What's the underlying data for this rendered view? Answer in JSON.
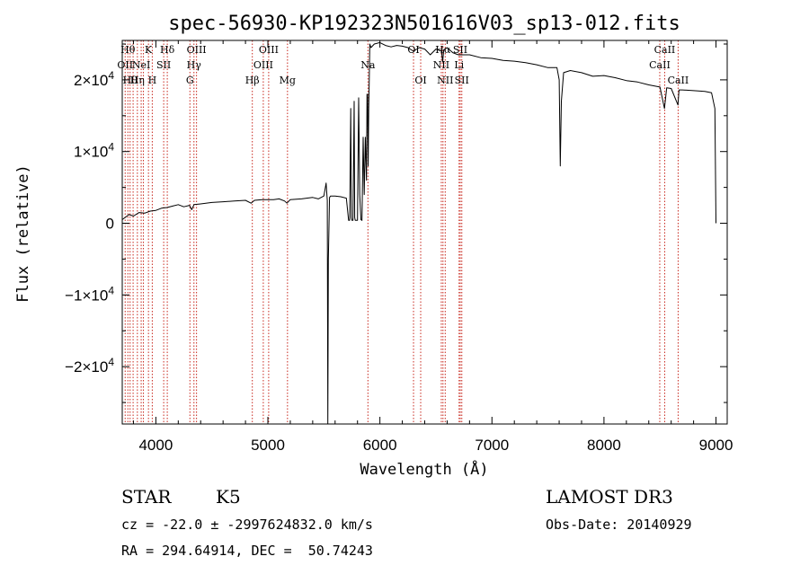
{
  "chart_data": {
    "type": "line",
    "title": "spec-56930-KP192323N501616V03_sp13-012.fits",
    "xlabel": "Wavelength (Å)",
    "ylabel": "Flux (relative)",
    "xlim": [
      3700,
      9100
    ],
    "ylim": [
      -28000,
      25500
    ],
    "x_ticks": [
      4000,
      5000,
      6000,
      7000,
      8000,
      9000
    ],
    "x_tick_labels": [
      "4000",
      "5000",
      "6000",
      "7000",
      "8000",
      "9000"
    ],
    "y_ticks": [
      -20000,
      -10000,
      0,
      10000,
      20000
    ],
    "y_tick_labels": [
      "−2×10",
      "−1×10",
      "0",
      "1×10",
      "2×10"
    ],
    "y_tick_exponent": [
      "4",
      "4",
      "",
      "4",
      "4"
    ],
    "series": [
      {
        "name": "flux",
        "x": [
          3700,
          3760,
          3800,
          3850,
          3900,
          3950,
          4000,
          4050,
          4100,
          4150,
          4200,
          4250,
          4300,
          4320,
          4340,
          4400,
          4500,
          4600,
          4700,
          4800,
          4850,
          4880,
          4950,
          5000,
          5050,
          5100,
          5150,
          5170,
          5200,
          5300,
          5400,
          5450,
          5500,
          5520,
          5530,
          5535,
          5540,
          5550,
          5560,
          5600,
          5650,
          5700,
          5720,
          5730,
          5740,
          5745,
          5750,
          5760,
          5770,
          5775,
          5780,
          5800,
          5810,
          5820,
          5830,
          5840,
          5850,
          5860,
          5870,
          5880,
          5885,
          5890,
          5895,
          5900,
          5905,
          5910,
          5920,
          5950,
          6000,
          6050,
          6100,
          6150,
          6200,
          6250,
          6300,
          6350,
          6400,
          6450,
          6500,
          6550,
          6560,
          6570,
          6600,
          6650,
          6700,
          6750,
          6800,
          6900,
          7000,
          7100,
          7200,
          7300,
          7400,
          7500,
          7580,
          7600,
          7610,
          7620,
          7640,
          7700,
          7800,
          7900,
          8000,
          8100,
          8200,
          8300,
          8400,
          8500,
          8540,
          8560,
          8600,
          8660,
          8670,
          8700,
          8800,
          8900,
          8960,
          8990,
          9000
        ],
        "y": [
          500,
          1200,
          1000,
          1500,
          1400,
          1700,
          1800,
          2100,
          2200,
          2400,
          2600,
          2300,
          2500,
          1900,
          2600,
          2700,
          2900,
          3000,
          3100,
          3200,
          2800,
          3200,
          3300,
          3300,
          3300,
          3400,
          3100,
          2800,
          3300,
          3400,
          3600,
          3400,
          3800,
          5600,
          3200,
          -28000,
          -5000,
          3600,
          3800,
          3800,
          3700,
          3500,
          400,
          400,
          16000,
          800,
          400,
          400,
          17000,
          800,
          400,
          400,
          17500,
          4000,
          500,
          400,
          12000,
          4000,
          12000,
          6000,
          18000,
          18000,
          8000,
          16000,
          20000,
          25000,
          24500,
          25000,
          25200,
          24800,
          24600,
          24800,
          24700,
          24500,
          24000,
          24500,
          24300,
          23500,
          24300,
          24000,
          22500,
          24200,
          24500,
          23800,
          23500,
          23500,
          23500,
          23100,
          23000,
          22700,
          22600,
          22400,
          22100,
          21700,
          21700,
          20000,
          8000,
          17000,
          21000,
          21300,
          21000,
          20500,
          20600,
          20300,
          19900,
          19700,
          19300,
          19000,
          16000,
          18900,
          18800,
          16500,
          18600,
          18600,
          18500,
          18400,
          18200,
          16000,
          0
        ]
      }
    ],
    "lines": [
      {
        "wl": 3726,
        "top": "",
        "mid": "OII",
        "bot": ""
      },
      {
        "wl": 3750,
        "top": "Hθ",
        "mid": "",
        "bot": ""
      },
      {
        "wl": 3770,
        "top": "",
        "mid": "",
        "bot": "Hθ"
      },
      {
        "wl": 3797,
        "top": "",
        "mid": "",
        "bot": ""
      },
      {
        "wl": 3835,
        "top": "",
        "mid": "",
        "bot": "Hη"
      },
      {
        "wl": 3869,
        "top": "",
        "mid": "NeI",
        "bot": ""
      },
      {
        "wl": 3889,
        "top": "",
        "mid": "",
        "bot": ""
      },
      {
        "wl": 3934,
        "top": "K",
        "mid": "",
        "bot": ""
      },
      {
        "wl": 3968,
        "top": "",
        "mid": "",
        "bot": "H"
      },
      {
        "wl": 4070,
        "top": "",
        "mid": "SII",
        "bot": ""
      },
      {
        "wl": 4102,
        "top": "Hδ",
        "mid": "",
        "bot": ""
      },
      {
        "wl": 4304,
        "top": "",
        "mid": "",
        "bot": "G"
      },
      {
        "wl": 4340,
        "top": "",
        "mid": "Hγ",
        "bot": ""
      },
      {
        "wl": 4363,
        "top": "OIII",
        "mid": "",
        "bot": ""
      },
      {
        "wl": 4861,
        "top": "",
        "mid": "",
        "bot": "Hβ"
      },
      {
        "wl": 4959,
        "top": "",
        "mid": "OIII",
        "bot": ""
      },
      {
        "wl": 5007,
        "top": "OIII",
        "mid": "",
        "bot": ""
      },
      {
        "wl": 5175,
        "top": "",
        "mid": "",
        "bot": "Mg"
      },
      {
        "wl": 5893,
        "top": "",
        "mid": "Na",
        "bot": ""
      },
      {
        "wl": 6300,
        "top": "OI",
        "mid": "",
        "bot": ""
      },
      {
        "wl": 6364,
        "top": "",
        "mid": "",
        "bot": "OI"
      },
      {
        "wl": 6548,
        "top": "",
        "mid": "NII",
        "bot": ""
      },
      {
        "wl": 6563,
        "top": "Hα",
        "mid": "",
        "bot": ""
      },
      {
        "wl": 6583,
        "top": "",
        "mid": "",
        "bot": "NII"
      },
      {
        "wl": 6707,
        "top": "",
        "mid": "Li",
        "bot": ""
      },
      {
        "wl": 6717,
        "top": "SII",
        "mid": "",
        "bot": ""
      },
      {
        "wl": 6731,
        "top": "",
        "mid": "",
        "bot": "SII"
      },
      {
        "wl": 8498,
        "top": "",
        "mid": "CaII",
        "bot": ""
      },
      {
        "wl": 8542,
        "top": "CaII",
        "mid": "",
        "bot": ""
      },
      {
        "wl": 8662,
        "top": "",
        "mid": "",
        "bot": "CaII"
      }
    ]
  },
  "info": {
    "class_label": "STAR",
    "subclass": "K5",
    "survey": "LAMOST DR3",
    "cz_line": "cz = -22.0 ± -2997624832.0 km/s",
    "obs_date_line": "Obs-Date: 20140929",
    "coords_line": "RA = 294.64914, DEC =  50.74243"
  },
  "colors": {
    "line_marker": "#c8281e",
    "spectrum": "#000000"
  }
}
